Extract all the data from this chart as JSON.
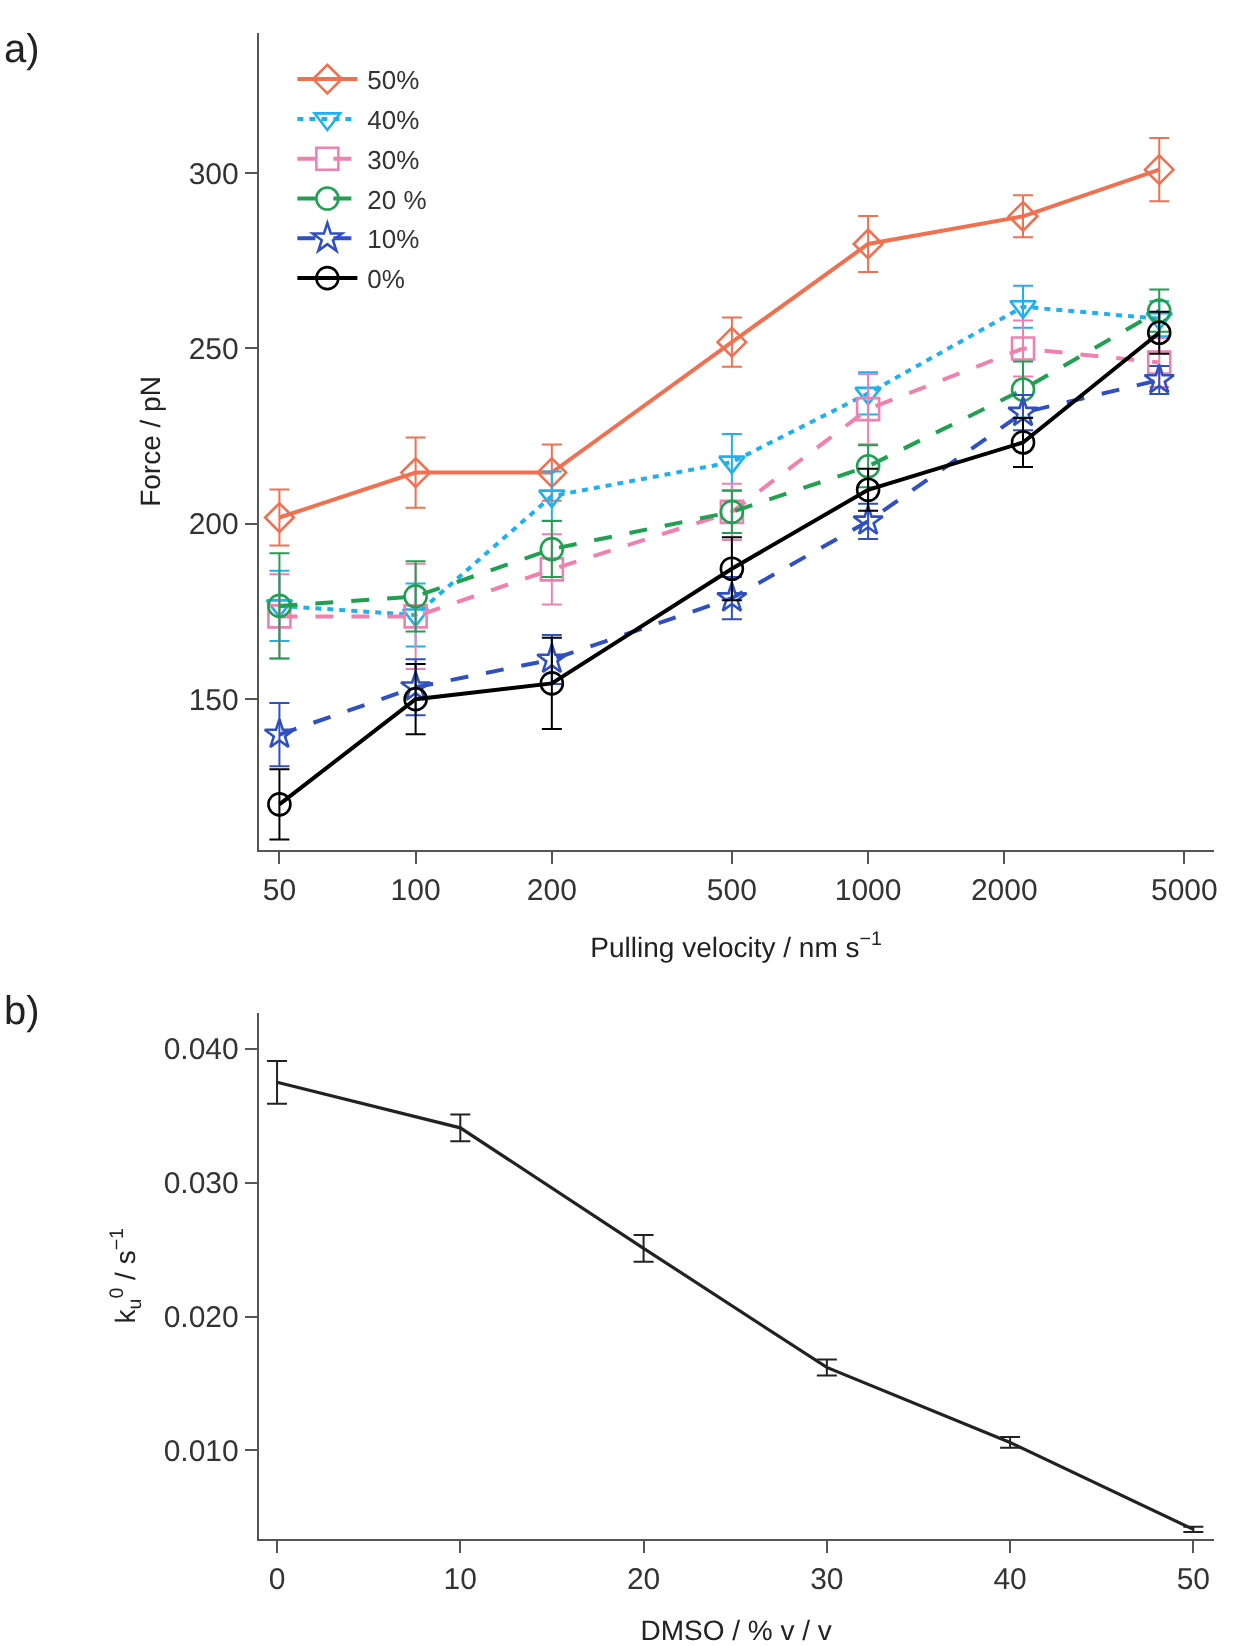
{
  "chart_data": [
    {
      "type": "line",
      "xlabel": "Pulling velocity / nm s$^{−1}$",
      "ylabel": "Force / pN",
      "annotations": [
        "a)"
      ],
      "log": "x",
      "xlim": [
        45,
        5800
      ],
      "xticks": [
        50,
        100,
        200,
        500,
        1000,
        2000,
        5000
      ],
      "ylim": [
        107,
        340
      ],
      "yticks": [
        150,
        200,
        250,
        300
      ],
      "x": [
        50,
        100,
        200,
        500,
        1000,
        2200,
        4400
      ],
      "legend": "top left",
      "series": [
        {
          "name": "50%",
          "color": "#f07050",
          "line_style": "solid",
          "marker": "diamond",
          "values": [
            201.8,
            214.6,
            214.6,
            251.8,
            279.8,
            287.7,
            301
          ],
          "errors": [
            8,
            10,
            8,
            7,
            8,
            6,
            9
          ]
        },
        {
          "name": "40%",
          "color": "#20b0f0",
          "line_style": "dotted",
          "marker": "triangle",
          "values": [
            176.6,
            174,
            207.9,
            217.6,
            237.2,
            261.9,
            258.5
          ],
          "errors": [
            10,
            9,
            7,
            8,
            6,
            6,
            5
          ]
        },
        {
          "name": "30%",
          "color": "#f080b0",
          "line_style": "dashed",
          "marker": "square",
          "values": [
            173.6,
            173.6,
            187,
            203.4,
            232.7,
            250,
            246
          ],
          "errors": [
            12,
            15,
            10,
            8,
            10,
            8,
            7
          ]
        },
        {
          "name": "20 %",
          "color": "#20a050",
          "line_style": "dashed",
          "marker": "circle",
          "values": [
            176.6,
            179.3,
            192.8,
            203.4,
            216.4,
            238.3,
            260.8
          ],
          "errors": [
            15,
            10,
            8,
            6,
            6,
            8,
            6
          ]
        },
        {
          "name": "10%",
          "color": "#3050c0",
          "line_style": "dashed",
          "marker": "star",
          "values": [
            139.9,
            153.4,
            161.3,
            178.8,
            200.7,
            231.7,
            241
          ],
          "errors": [
            9,
            8,
            7,
            6,
            5,
            5,
            4
          ]
        },
        {
          "name": "0%",
          "color": "#000000",
          "line_style": "solid",
          "marker": "circle",
          "values": [
            120,
            150,
            154.5,
            187.2,
            209.7,
            223.2,
            254.5
          ],
          "errors": [
            10,
            10,
            13,
            9,
            6,
            7,
            6
          ]
        }
      ]
    },
    {
      "type": "line",
      "xlabel": "DMSO / % v / v",
      "ylabel": "k$_{u}$$^{0}$ / s$^{−1}$",
      "annotations": [
        "b)"
      ],
      "xlim": [
        -1,
        51.1
      ],
      "xticks": [
        0,
        10,
        20,
        30,
        40,
        50
      ],
      "ylim": [
        0.0034,
        0.0427
      ],
      "yticks": [
        {
          "value": 0.01,
          "label": "0.010"
        },
        {
          "value": 0.02,
          "label": "0.020"
        },
        {
          "value": 0.03,
          "label": "0.030"
        },
        {
          "value": 0.04,
          "label": "0.040"
        }
      ],
      "x": [
        0,
        10,
        20,
        30,
        40,
        50
      ],
      "legend": false,
      "series": [
        {
          "color": "#222222",
          "line_style": "solid",
          "values": [
            0.0375,
            0.0341,
            0.0251,
            0.0162,
            0.0106,
            0.0041
          ],
          "errors": [
            0.0016,
            0.001,
            0.001,
            0.0006,
            0.0004,
            0.0002
          ]
        }
      ]
    }
  ]
}
